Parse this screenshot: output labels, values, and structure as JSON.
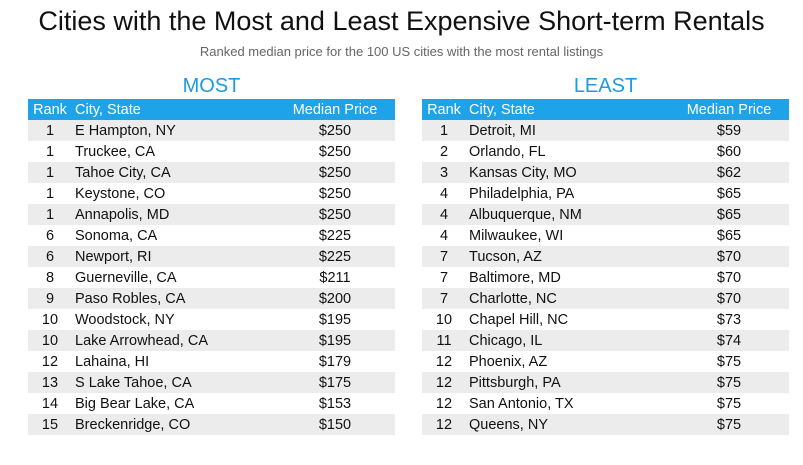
{
  "header": {
    "title": "Cities with the Most and Least Expensive Short-term Rentals",
    "subtitle": "Ranked median price for the 100 US cities with the most rental listings"
  },
  "tables": [
    {
      "title": "MOST",
      "columns": [
        "Rank",
        "City, State",
        "Median Price"
      ],
      "rows": [
        [
          "1",
          "E Hampton, NY",
          "$250"
        ],
        [
          "1",
          "Truckee, CA",
          "$250"
        ],
        [
          "1",
          "Tahoe City, CA",
          "$250"
        ],
        [
          "1",
          "Keystone, CO",
          "$250"
        ],
        [
          "1",
          "Annapolis, MD",
          "$250"
        ],
        [
          "6",
          "Sonoma, CA",
          "$225"
        ],
        [
          "6",
          "Newport, RI",
          "$225"
        ],
        [
          "8",
          "Guerneville, CA",
          "$211"
        ],
        [
          "9",
          "Paso Robles, CA",
          "$200"
        ],
        [
          "10",
          "Woodstock, NY",
          "$195"
        ],
        [
          "10",
          "Lake Arrowhead, CA",
          "$195"
        ],
        [
          "12",
          "Lahaina, HI",
          "$179"
        ],
        [
          "13",
          "S Lake Tahoe, CA",
          "$175"
        ],
        [
          "14",
          "Big Bear Lake, CA",
          "$153"
        ],
        [
          "15",
          "Breckenridge, CO",
          "$150"
        ]
      ]
    },
    {
      "title": "LEAST",
      "columns": [
        "Rank",
        "City, State",
        "Median Price"
      ],
      "rows": [
        [
          "1",
          "Detroit, MI",
          "$59"
        ],
        [
          "2",
          "Orlando, FL",
          "$60"
        ],
        [
          "3",
          "Kansas City, MO",
          "$62"
        ],
        [
          "4",
          "Philadelphia, PA",
          "$65"
        ],
        [
          "4",
          "Albuquerque, NM",
          "$65"
        ],
        [
          "4",
          "Milwaukee, WI",
          "$65"
        ],
        [
          "7",
          "Tucson, AZ",
          "$70"
        ],
        [
          "7",
          "Baltimore, MD",
          "$70"
        ],
        [
          "7",
          "Charlotte, NC",
          "$70"
        ],
        [
          "10",
          "Chapel Hill, NC",
          "$73"
        ],
        [
          "11",
          "Chicago, IL",
          "$74"
        ],
        [
          "12",
          "Phoenix, AZ",
          "$75"
        ],
        [
          "12",
          "Pittsburgh, PA",
          "$75"
        ],
        [
          "12",
          "San Antonio, TX",
          "$75"
        ],
        [
          "12",
          "Queens, NY",
          "$75"
        ]
      ]
    }
  ]
}
